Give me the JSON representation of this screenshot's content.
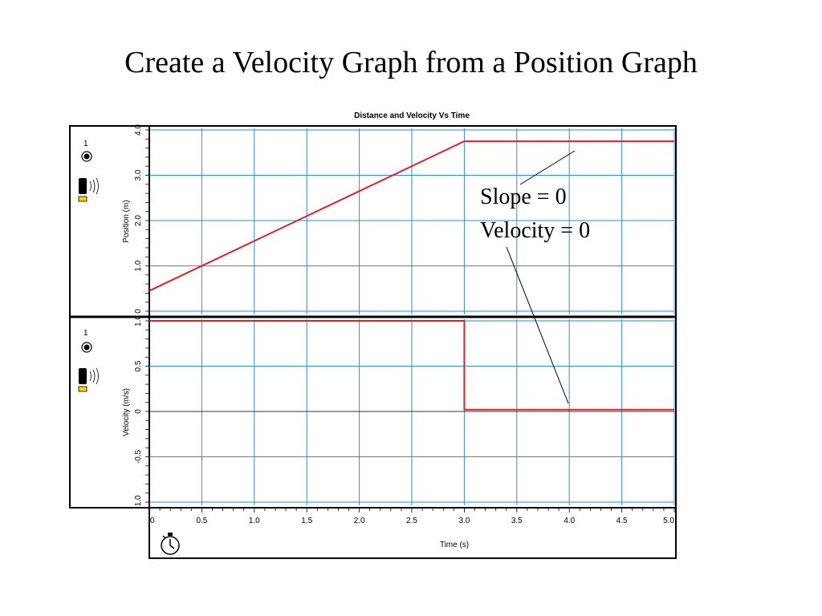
{
  "slide": {
    "title": "Create a Velocity Graph from a Position Graph"
  },
  "annotations": {
    "slope": "Slope = 0",
    "velocity": "Velocity = 0"
  },
  "icons": {
    "sensor_channel": "1",
    "sensor_icon": "motion-detector-icon",
    "radio_icon": "channel-radio-icon",
    "stopwatch_icon": "stopwatch-icon"
  },
  "colors": {
    "data_line": "#e0202a",
    "grid": "#2a8fd8",
    "frame": "#000000"
  },
  "chart_data": {
    "type": "line",
    "title": "Distance and Velocity Vs Time",
    "xlabel": "Time (s)",
    "xlim": [
      0,
      5.0
    ],
    "x_ticks": [
      "0",
      "0.5",
      "1.0",
      "1.5",
      "2.0",
      "2.5",
      "3.0",
      "3.5",
      "4.0",
      "4.5",
      "5.0"
    ],
    "grid": true,
    "panels": [
      {
        "name": "position",
        "ylabel": "Position (m)",
        "ylim": [
          0,
          4.0
        ],
        "y_ticks": [
          "0",
          "1.0",
          "2.0",
          "3.0",
          "4.0"
        ],
        "series": [
          {
            "x": [
              0,
              3.0,
              5.0
            ],
            "y": [
              0.45,
              3.75,
              3.75
            ]
          }
        ]
      },
      {
        "name": "velocity",
        "ylabel": "Velocity (m/s)",
        "ylim": [
          -1.0,
          1.0
        ],
        "y_ticks": [
          "-1.0",
          "-0.5",
          "0",
          "0.5",
          "1.0"
        ],
        "series": [
          {
            "x": [
              0,
              3.0,
              3.0,
              5.0
            ],
            "y": [
              1.0,
              1.0,
              0.02,
              0.02
            ]
          }
        ]
      }
    ]
  }
}
